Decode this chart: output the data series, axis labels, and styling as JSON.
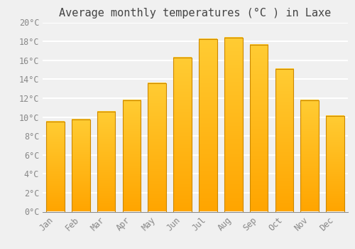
{
  "title": "Average monthly temperatures (°C ) in Laxe",
  "months": [
    "Jan",
    "Feb",
    "Mar",
    "Apr",
    "May",
    "Jun",
    "Jul",
    "Aug",
    "Sep",
    "Oct",
    "Nov",
    "Dec"
  ],
  "values": [
    9.5,
    9.7,
    10.6,
    11.8,
    13.6,
    16.3,
    18.2,
    18.4,
    17.6,
    15.1,
    11.8,
    10.1
  ],
  "bar_color_top": "#FFCC33",
  "bar_color_bottom": "#FFA500",
  "bar_edge_color": "#CC8800",
  "background_color": "#F0F0F0",
  "grid_color": "#FFFFFF",
  "ylim": [
    0,
    20
  ],
  "ytick_step": 2,
  "title_fontsize": 11,
  "tick_fontsize": 8.5,
  "font_family": "monospace"
}
